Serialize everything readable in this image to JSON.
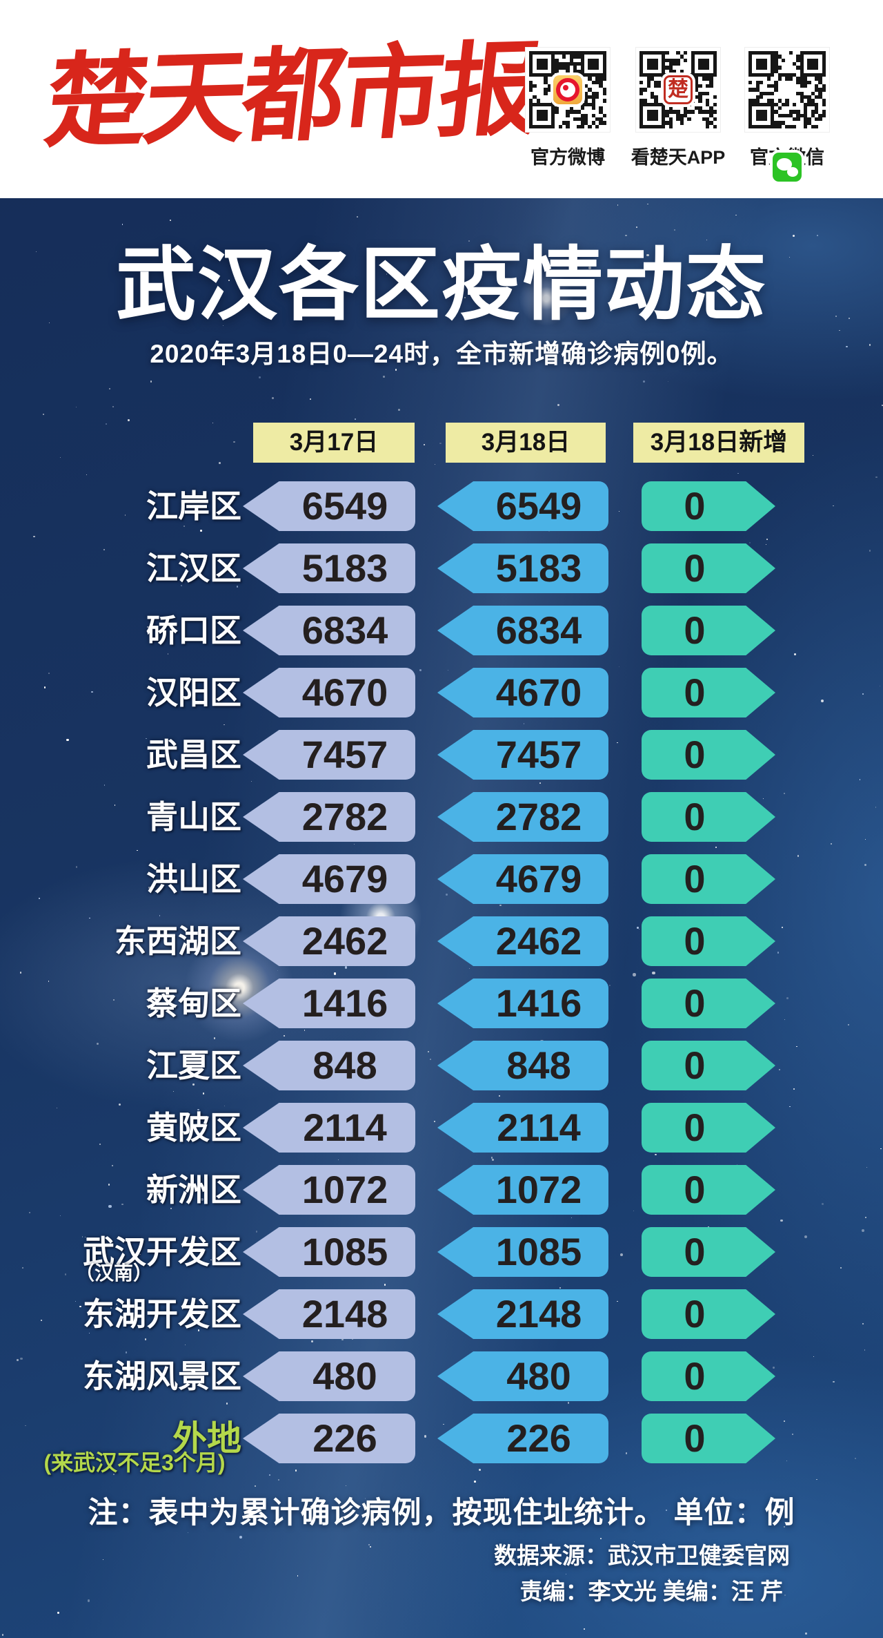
{
  "header": {
    "logo_text": "楚天都市报",
    "qr_items": [
      {
        "label": "官方微博",
        "icon": "weibo-icon"
      },
      {
        "label": "看楚天APP",
        "icon": "chutian-app-icon",
        "icon_char": "楚"
      },
      {
        "label": "官方微信",
        "icon": "wechat-icon"
      }
    ]
  },
  "title": "武汉各区疫情动态",
  "subtitle": "2020年3月18日0—24时，全市新增确诊病例0例。",
  "table": {
    "columns": [
      "3月17日",
      "3月18日",
      "3月18日新增"
    ],
    "rows": [
      {
        "district": "江岸区",
        "v17": "6549",
        "v18": "6549",
        "vnew": "0"
      },
      {
        "district": "江汉区",
        "v17": "5183",
        "v18": "5183",
        "vnew": "0"
      },
      {
        "district": "硚口区",
        "v17": "6834",
        "v18": "6834",
        "vnew": "0"
      },
      {
        "district": "汉阳区",
        "v17": "4670",
        "v18": "4670",
        "vnew": "0"
      },
      {
        "district": "武昌区",
        "v17": "7457",
        "v18": "7457",
        "vnew": "0"
      },
      {
        "district": "青山区",
        "v17": "2782",
        "v18": "2782",
        "vnew": "0"
      },
      {
        "district": "洪山区",
        "v17": "4679",
        "v18": "4679",
        "vnew": "0"
      },
      {
        "district": "东西湖区",
        "v17": "2462",
        "v18": "2462",
        "vnew": "0"
      },
      {
        "district": "蔡甸区",
        "v17": "1416",
        "v18": "1416",
        "vnew": "0"
      },
      {
        "district": "江夏区",
        "v17": "848",
        "v18": "848",
        "vnew": "0"
      },
      {
        "district": "黄陂区",
        "v17": "2114",
        "v18": "2114",
        "vnew": "0"
      },
      {
        "district": "新洲区",
        "v17": "1072",
        "v18": "1072",
        "vnew": "0"
      },
      {
        "district": "武汉开发区",
        "sub": "（汉南）",
        "v17": "1085",
        "v18": "1085",
        "vnew": "0"
      },
      {
        "district": "东湖开发区",
        "v17": "2148",
        "v18": "2148",
        "vnew": "0"
      },
      {
        "district": "东湖风景区",
        "v17": "480",
        "v18": "480",
        "vnew": "0"
      },
      {
        "district": "外地",
        "sub": "(来武汉不足3个月)",
        "v17": "226",
        "v18": "226",
        "vnew": "0"
      }
    ]
  },
  "footer": {
    "note": "注：表中为累计确诊病例，按现住址统计。 单位：例",
    "source": "数据来源：武汉市卫健委官网",
    "credits": "责编：李文光  美编：汪  芹"
  },
  "colors": {
    "background_navy": "#152c57",
    "masthead_white": "#ffffff",
    "logo_red": "#d8261b",
    "header_box_yellow": "#eeeba4",
    "pill_lavender": "#b3bfe3",
    "pill_blue": "#4bb3e6",
    "pill_teal": "#3fceb4",
    "number_dark": "#241f1f",
    "waidi_green": "#b4d84b",
    "text_white": "#ffffff"
  },
  "chart_data": {
    "type": "table",
    "title": "武汉各区疫情动态",
    "subtitle": "2020年3月18日0—24时，全市新增确诊病例0例。",
    "categories": [
      "江岸区",
      "江汉区",
      "硚口区",
      "汉阳区",
      "武昌区",
      "青山区",
      "洪山区",
      "东西湖区",
      "蔡甸区",
      "江夏区",
      "黄陂区",
      "新洲区",
      "武汉开发区（汉南）",
      "东湖开发区",
      "东湖风景区",
      "外地（来武汉不足3个月）"
    ],
    "series": [
      {
        "name": "3月17日",
        "values": [
          6549,
          5183,
          6834,
          4670,
          7457,
          2782,
          4679,
          2462,
          1416,
          848,
          2114,
          1072,
          1085,
          2148,
          480,
          226
        ]
      },
      {
        "name": "3月18日",
        "values": [
          6549,
          5183,
          6834,
          4670,
          7457,
          2782,
          4679,
          2462,
          1416,
          848,
          2114,
          1072,
          1085,
          2148,
          480,
          226
        ]
      },
      {
        "name": "3月18日新增",
        "values": [
          0,
          0,
          0,
          0,
          0,
          0,
          0,
          0,
          0,
          0,
          0,
          0,
          0,
          0,
          0,
          0
        ]
      }
    ],
    "unit": "例",
    "note": "表中为累计确诊病例，按现住址统计"
  }
}
